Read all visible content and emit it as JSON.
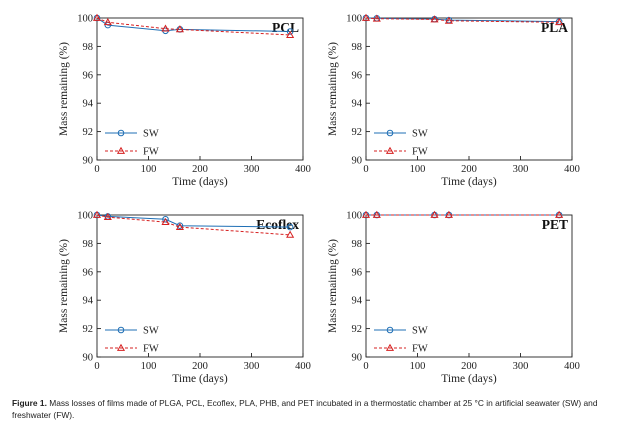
{
  "caption": {
    "label": "Figure 1.",
    "text": "Mass losses of films made of PLGA, PCL, Ecoflex, PLA, PHB, and PET incubated in a thermostatic chamber at 25 °C in artificial seawater (SW) and freshwater (FW)."
  },
  "colors": {
    "SW": "#1f6fb5",
    "FW": "#d62020"
  },
  "chart_data": [
    {
      "type": "line",
      "title": "PCL",
      "xlabel": "Time (days)",
      "ylabel": "Mass remaining (%)",
      "xlim": [
        0,
        400
      ],
      "ylim": [
        90,
        100
      ],
      "xticks": [
        "0",
        "100",
        "200",
        "300",
        "400"
      ],
      "yticks": [
        "90",
        "92",
        "94",
        "96",
        "98",
        "100"
      ],
      "legend": "bottom-left",
      "series": [
        {
          "name": "SW",
          "marker": "circle",
          "line": "solid",
          "x": [
            0,
            21,
            133,
            161,
            375
          ],
          "y": [
            100,
            99.5,
            99.1,
            99.2,
            99.05
          ]
        },
        {
          "name": "FW",
          "marker": "triangle",
          "line": "dashed",
          "x": [
            0,
            21,
            133,
            161,
            375
          ],
          "y": [
            100,
            99.7,
            99.25,
            99.2,
            98.8
          ]
        }
      ]
    },
    {
      "type": "line",
      "title": "PLA",
      "xlabel": "Time (days)",
      "ylabel": "Mass remaining (%)",
      "xlim": [
        0,
        400
      ],
      "ylim": [
        90,
        100
      ],
      "xticks": [
        "0",
        "100",
        "200",
        "300",
        "400"
      ],
      "yticks": [
        "90",
        "92",
        "94",
        "96",
        "98",
        "100"
      ],
      "legend": "bottom-left",
      "series": [
        {
          "name": "SW",
          "marker": "circle",
          "line": "solid",
          "x": [
            0,
            21,
            133,
            161,
            375
          ],
          "y": [
            100,
            99.98,
            99.92,
            99.85,
            99.75
          ]
        },
        {
          "name": "FW",
          "marker": "triangle",
          "line": "dashed",
          "x": [
            0,
            21,
            133,
            161,
            375
          ],
          "y": [
            100,
            99.95,
            99.9,
            99.8,
            99.7
          ]
        }
      ]
    },
    {
      "type": "line",
      "title": "Ecoflex",
      "xlabel": "Time (days)",
      "ylabel": "Mass remaining (%)",
      "xlim": [
        0,
        400
      ],
      "ylim": [
        90,
        100
      ],
      "xticks": [
        "0",
        "100",
        "200",
        "300",
        "400"
      ],
      "yticks": [
        "90",
        "92",
        "94",
        "96",
        "98",
        "100"
      ],
      "legend": "bottom-left",
      "series": [
        {
          "name": "SW",
          "marker": "circle",
          "line": "solid",
          "x": [
            0,
            21,
            133,
            161,
            375
          ],
          "y": [
            100,
            99.9,
            99.7,
            99.25,
            99.15
          ]
        },
        {
          "name": "FW",
          "marker": "triangle",
          "line": "dashed",
          "x": [
            0,
            21,
            133,
            161,
            375
          ],
          "y": [
            100,
            99.85,
            99.5,
            99.15,
            98.6
          ]
        }
      ]
    },
    {
      "type": "line",
      "title": "PET",
      "xlabel": "Time (days)",
      "ylabel": "Mass remaining (%)",
      "xlim": [
        0,
        400
      ],
      "ylim": [
        90,
        100
      ],
      "xticks": [
        "0",
        "100",
        "200",
        "300",
        "400"
      ],
      "yticks": [
        "90",
        "92",
        "94",
        "96",
        "98",
        "100"
      ],
      "legend": "bottom-left",
      "series": [
        {
          "name": "SW",
          "marker": "circle",
          "line": "solid",
          "x": [
            0,
            21,
            133,
            161,
            375
          ],
          "y": [
            100,
            100,
            100,
            100,
            100
          ]
        },
        {
          "name": "FW",
          "marker": "triangle",
          "line": "dashed",
          "x": [
            0,
            21,
            133,
            161,
            375
          ],
          "y": [
            100,
            100,
            100,
            100,
            100
          ]
        }
      ]
    }
  ]
}
